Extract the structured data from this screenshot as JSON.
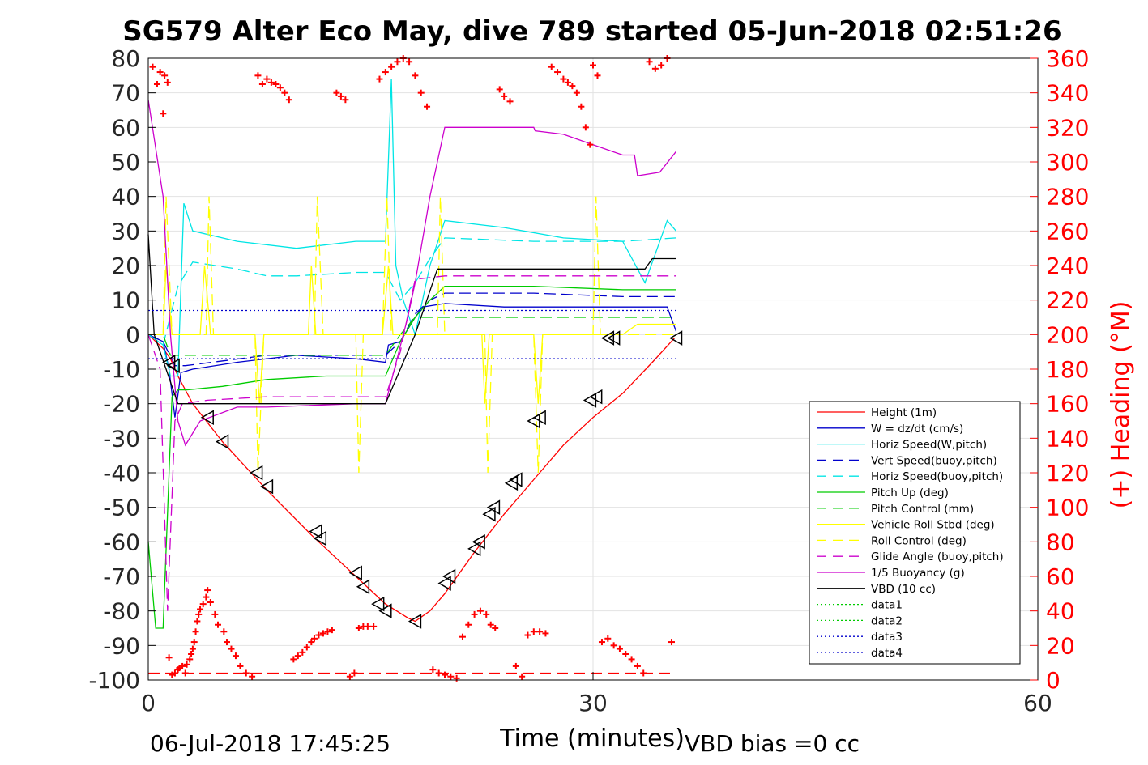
{
  "chart_data": {
    "type": "line",
    "title": "SG579 Alter Eco May, dive 789 started 05-Jun-2018 02:51:26",
    "xlabel": "Time (minutes)",
    "ylabel": "",
    "y2label": "(+) Heading (°M)",
    "xlim": [
      0,
      60
    ],
    "ylim": [
      -100,
      80
    ],
    "y2lim": [
      0,
      360
    ],
    "x_ticks": [
      "0",
      "30",
      "60"
    ],
    "y_ticks": [
      "80",
      "70",
      "60",
      "50",
      "40",
      "30",
      "20",
      "10",
      "0",
      "-10",
      "-20",
      "-30",
      "-40",
      "-50",
      "-60",
      "-70",
      "-80",
      "-90",
      "-100"
    ],
    "y2_ticks": [
      "360",
      "340",
      "320",
      "300",
      "280",
      "260",
      "240",
      "220",
      "200",
      "180",
      "160",
      "140",
      "120",
      "100",
      "80",
      "60",
      "40",
      "20",
      "0"
    ],
    "grid": true,
    "legend_position": "lower-right",
    "footer_left": "06-Jul-2018 17:45:25",
    "footer_right": "VBD bias =0 cc",
    "colors": {
      "heading": "#ff0000",
      "axis2": "#ff0000"
    },
    "series": [
      {
        "name": "Height (1m)",
        "color": "#ff0000",
        "style": "solid",
        "x": [
          0,
          1,
          1.5,
          2,
          3,
          5,
          8,
          11,
          14,
          16,
          17.5,
          18,
          19,
          20,
          22,
          24,
          26,
          28,
          30,
          32,
          34,
          35.5
        ],
        "y": [
          0,
          -4,
          -7,
          -12,
          -20,
          -31,
          -45,
          -58,
          -70,
          -78,
          -82,
          -83,
          -80,
          -75,
          -63,
          -52,
          -42,
          -32,
          -24,
          -17,
          -8,
          -1
        ]
      },
      {
        "name": "W = dz/dt (cm/s)",
        "color": "#0000cc",
        "style": "solid",
        "x": [
          0,
          1,
          1.4,
          1.8,
          2.2,
          3,
          6,
          10,
          14,
          16,
          16.2,
          17,
          18,
          18.5,
          20,
          24,
          28,
          32,
          35,
          35.6
        ],
        "y": [
          0,
          -2,
          -10,
          -24,
          -11,
          -10,
          -8,
          -6,
          -7,
          -8,
          -3,
          -2,
          5,
          8,
          9,
          8,
          8,
          8,
          8,
          1
        ]
      },
      {
        "name": "Horiz Speed(W,pitch)",
        "color": "#00e5e5",
        "style": "solid",
        "x": [
          0,
          1,
          1.5,
          2,
          2.4,
          3,
          6,
          10,
          14,
          16,
          16.4,
          16.7,
          17.2,
          18,
          19,
          20,
          24,
          28,
          32,
          33.5,
          35,
          35.6
        ],
        "y": [
          0,
          -3,
          -12,
          -12,
          38,
          30,
          27,
          25,
          27,
          27,
          74,
          20,
          10,
          0,
          20,
          33,
          31,
          28,
          27,
          15,
          33,
          30
        ]
      },
      {
        "name": "Vert Speed(buoy,pitch)",
        "color": "#0000cc",
        "style": "dashed",
        "x": [
          0,
          1,
          1.8,
          2.5,
          8,
          14,
          16,
          17,
          18,
          19,
          20,
          26,
          32,
          35.6
        ],
        "y": [
          0,
          -2,
          -9,
          -9,
          -6,
          -6,
          -6,
          -2,
          6,
          10,
          12,
          12,
          11,
          11
        ]
      },
      {
        "name": "Horiz Speed(buoy,pitch)",
        "color": "#00e5e5",
        "style": "dashed",
        "x": [
          0,
          1,
          2,
          3,
          6,
          8,
          10,
          14,
          16,
          17,
          18,
          19,
          20,
          26,
          32,
          35.6
        ],
        "y": [
          0,
          -3,
          14,
          21,
          19,
          17,
          17,
          18,
          18,
          10,
          15,
          22,
          28,
          27,
          27,
          28
        ]
      },
      {
        "name": "Pitch Up (deg)",
        "color": "#00cc00",
        "style": "solid",
        "x": [
          0,
          0.5,
          1,
          1.6,
          2,
          2.6,
          5,
          8,
          12,
          14,
          16,
          17,
          18,
          19,
          20,
          26,
          32,
          35.6
        ],
        "y": [
          -60,
          -85,
          -85,
          -18,
          -16,
          -16,
          -15,
          -13,
          -12,
          -12,
          -12,
          -2,
          5,
          10,
          14,
          14,
          13,
          13
        ]
      },
      {
        "name": "Pitch Control (mm)",
        "color": "#00cc00",
        "style": "dashed",
        "x": [
          0,
          1,
          1.5,
          2,
          16,
          17,
          18,
          35.6
        ],
        "y": [
          0,
          0,
          -6,
          -6,
          -6,
          0,
          5,
          5
        ]
      },
      {
        "name": "Vehicle Roll Stbd (deg)",
        "color": "#ffff00",
        "style": "solid",
        "x": [
          0,
          1,
          1.2,
          1.6,
          2,
          3.5,
          3.8,
          4.2,
          7.2,
          7.5,
          7.8,
          10.8,
          11.0,
          11.3,
          15.8,
          16.2,
          16.5,
          22.5,
          22.7,
          23,
          26,
          26.3,
          26.6,
          32,
          33,
          35.6
        ],
        "y": [
          0,
          0,
          20,
          0,
          0,
          0,
          20,
          0,
          0,
          -20,
          0,
          0,
          20,
          0,
          0,
          20,
          0,
          0,
          -20,
          0,
          0,
          -20,
          0,
          0,
          3,
          3
        ]
      },
      {
        "name": "Roll Control (deg)",
        "color": "#ffff00",
        "style": "dashed",
        "x": [
          0,
          1,
          1.2,
          1.6,
          2,
          3.9,
          4.1,
          4.4,
          7.2,
          7.4,
          7.8,
          11.2,
          11.4,
          11.8,
          14,
          14.2,
          14.5,
          15.8,
          16.1,
          16.4,
          19.5,
          19.7,
          20,
          22.7,
          22.9,
          23.2,
          26,
          26.3,
          26.6,
          30,
          30.2,
          30.5,
          35.6
        ],
        "y": [
          0,
          0,
          40,
          0,
          0,
          0,
          40,
          0,
          0,
          -40,
          0,
          0,
          40,
          0,
          0,
          -40,
          0,
          0,
          40,
          0,
          0,
          40,
          0,
          0,
          -40,
          0,
          0,
          -40,
          0,
          0,
          40,
          0,
          0
        ]
      },
      {
        "name": "Glide Angle (buoy,pitch)",
        "color": "#cc00cc",
        "style": "dashed",
        "x": [
          0,
          0.8,
          1.3,
          1.8,
          2.3,
          4,
          8,
          14,
          16,
          17,
          18,
          20,
          26,
          32,
          35.6
        ],
        "y": [
          0,
          -10,
          -80,
          -25,
          -20,
          -19,
          -18,
          -18,
          -18,
          -5,
          16,
          17,
          17,
          17,
          17
        ]
      },
      {
        "name": "1/5 Buoyancy (g)",
        "color": "#cc00cc",
        "style": "solid",
        "x": [
          0,
          1,
          1.5,
          2,
          2.5,
          3.5,
          6,
          8,
          14,
          16,
          17.5,
          18,
          19,
          20,
          26,
          26.1,
          28,
          30,
          32,
          32.8,
          33,
          34.5,
          35.6
        ],
        "y": [
          68,
          40,
          0,
          -25,
          -32,
          -25,
          -21,
          -21,
          -20,
          -20,
          5,
          15,
          40,
          60,
          60,
          59,
          58,
          55,
          52,
          52,
          46,
          47,
          53
        ]
      },
      {
        "name": "VBD (10 cc)",
        "color": "#000000",
        "style": "solid",
        "x": [
          0,
          0.4,
          1.2,
          2,
          8,
          14,
          16,
          17,
          18,
          19.5,
          20,
          33.5,
          34,
          35.6
        ],
        "y": [
          29,
          0,
          -10,
          -20,
          -20,
          -20,
          -20,
          -10,
          0,
          19,
          19,
          19,
          22,
          22
        ]
      },
      {
        "name": "data1",
        "color": "#00cc00",
        "style": "dotted",
        "x": [],
        "y": []
      },
      {
        "name": "data2",
        "color": "#00cc00",
        "style": "dotted",
        "x": [],
        "y": []
      },
      {
        "name": "data3",
        "color": "#0000cc",
        "style": "dotted",
        "x": [
          0,
          35.6
        ],
        "y": [
          7,
          7
        ]
      },
      {
        "name": "data4",
        "color": "#0000cc",
        "style": "dotted",
        "x": [
          0,
          35.6
        ],
        "y": [
          -7,
          -7
        ]
      }
    ],
    "ref_lines": [
      {
        "color": "#ff0000",
        "style": "dashed",
        "x": [
          0,
          35.6
        ],
        "y": [
          -98,
          -98
        ]
      }
    ],
    "heading_points": {
      "color": "#ff0000",
      "marker": "+",
      "x": [
        0.3,
        0.6,
        0.8,
        1.0,
        1.1,
        1.3,
        1.4,
        1.6,
        1.8,
        2.0,
        2.1,
        2.3,
        2.5,
        2.6,
        2.8,
        2.9,
        3.0,
        3.1,
        3.2,
        3.3,
        3.4,
        3.5,
        3.7,
        3.9,
        4.0,
        4.2,
        4.5,
        4.7,
        5.1,
        5.3,
        5.6,
        5.9,
        6.2,
        6.6,
        7.0,
        7.4,
        7.7,
        8.0,
        8.3,
        8.6,
        8.9,
        9.2,
        9.5,
        9.8,
        10.1,
        10.4,
        10.7,
        11.0,
        11.2,
        11.5,
        11.8,
        12.1,
        12.4,
        12.7,
        13.0,
        13.3,
        13.6,
        13.9,
        14.2,
        14.5,
        14.8,
        15.2,
        15.6,
        16.0,
        16.4,
        16.8,
        17.2,
        17.6,
        18.0,
        18.4,
        18.8,
        19.2,
        19.6,
        20.0,
        20.4,
        20.8,
        21.2,
        21.6,
        22.0,
        22.4,
        22.8,
        23.1,
        23.4,
        23.7,
        24.0,
        24.4,
        24.8,
        25.2,
        25.6,
        26.0,
        26.4,
        26.8,
        27.2,
        27.6,
        28.0,
        28.3,
        28.6,
        28.9,
        29.2,
        29.5,
        29.8,
        30.0,
        30.3,
        30.6,
        31.0,
        31.4,
        31.8,
        32.2,
        32.6,
        33.0,
        33.4,
        33.8,
        34.2,
        34.6,
        35.0,
        35.3
      ],
      "y": [
        355,
        345,
        352,
        328,
        350,
        346,
        13,
        3,
        4,
        6,
        7,
        8,
        4,
        9,
        12,
        15,
        18,
        22,
        28,
        34,
        38,
        41,
        44,
        48,
        52,
        45,
        38,
        32,
        28,
        22,
        18,
        14,
        8,
        4,
        2,
        350,
        345,
        348,
        346,
        345,
        343,
        340,
        336,
        12,
        14,
        16,
        19,
        22,
        24,
        26,
        27,
        28,
        29,
        340,
        338,
        336,
        2,
        4,
        30,
        31,
        31,
        31,
        348,
        352,
        355,
        358,
        360,
        358,
        350,
        340,
        332,
        6,
        4,
        3,
        2,
        1,
        25,
        32,
        38,
        40,
        38,
        32,
        30,
        342,
        338,
        335,
        8,
        2,
        26,
        28,
        28,
        27,
        355,
        352,
        348,
        346,
        344,
        340,
        332,
        320,
        310,
        356,
        350,
        22,
        24,
        20,
        18,
        15,
        12,
        8,
        4,
        358,
        354,
        356,
        360,
        22
      ]
    },
    "triangle_markers": {
      "color": "#000000",
      "x": [
        1.4,
        1.7,
        4.0,
        5.0,
        7.3,
        8.0,
        11.3,
        11.6,
        14.0,
        14.5,
        15.5,
        16.0,
        18.0,
        20.0,
        20.3,
        22.0,
        22.3,
        23.0,
        23.3,
        24.5,
        24.8,
        26.0,
        26.4,
        29.8,
        30.2,
        31.0,
        31.4,
        35.6
      ],
      "y": [
        -8,
        -9,
        -24,
        -31,
        -40,
        -44,
        -57,
        -59,
        -69,
        -73,
        -78,
        -80,
        -83,
        -72,
        -70,
        -62,
        -60,
        -52,
        -50,
        -43,
        -42,
        -25,
        -24,
        -19,
        -18,
        -1,
        -1,
        -1
      ]
    }
  }
}
